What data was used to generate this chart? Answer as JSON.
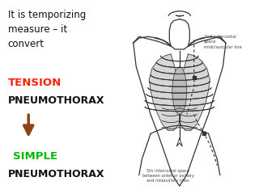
{
  "bg_color": "#ffffff",
  "text_intro_lines": [
    "It is temporizing",
    "measure – it",
    "convert"
  ],
  "text_tension": "TENSION",
  "text_pneumo1": "PNEUMOTHORAX",
  "text_simple": "SIMPLE",
  "text_pneumo2": "PNEUMOTHORAX",
  "color_tension": "#ff2200",
  "color_simple": "#00bb00",
  "color_black": "#111111",
  "color_arrow": "#8B4513",
  "color_body": "#333333",
  "label_2nd": "2nd intercostal\nspace\nmidclavicular line",
  "label_5th": "5th intercostal space\nbetween anterior axillary\nand midaxillary lines",
  "fontsize_intro": 8.5,
  "fontsize_tension": 9.5,
  "fontsize_pneumo": 9.0,
  "fontsize_simple": 9.5,
  "fontsize_label": 3.8
}
